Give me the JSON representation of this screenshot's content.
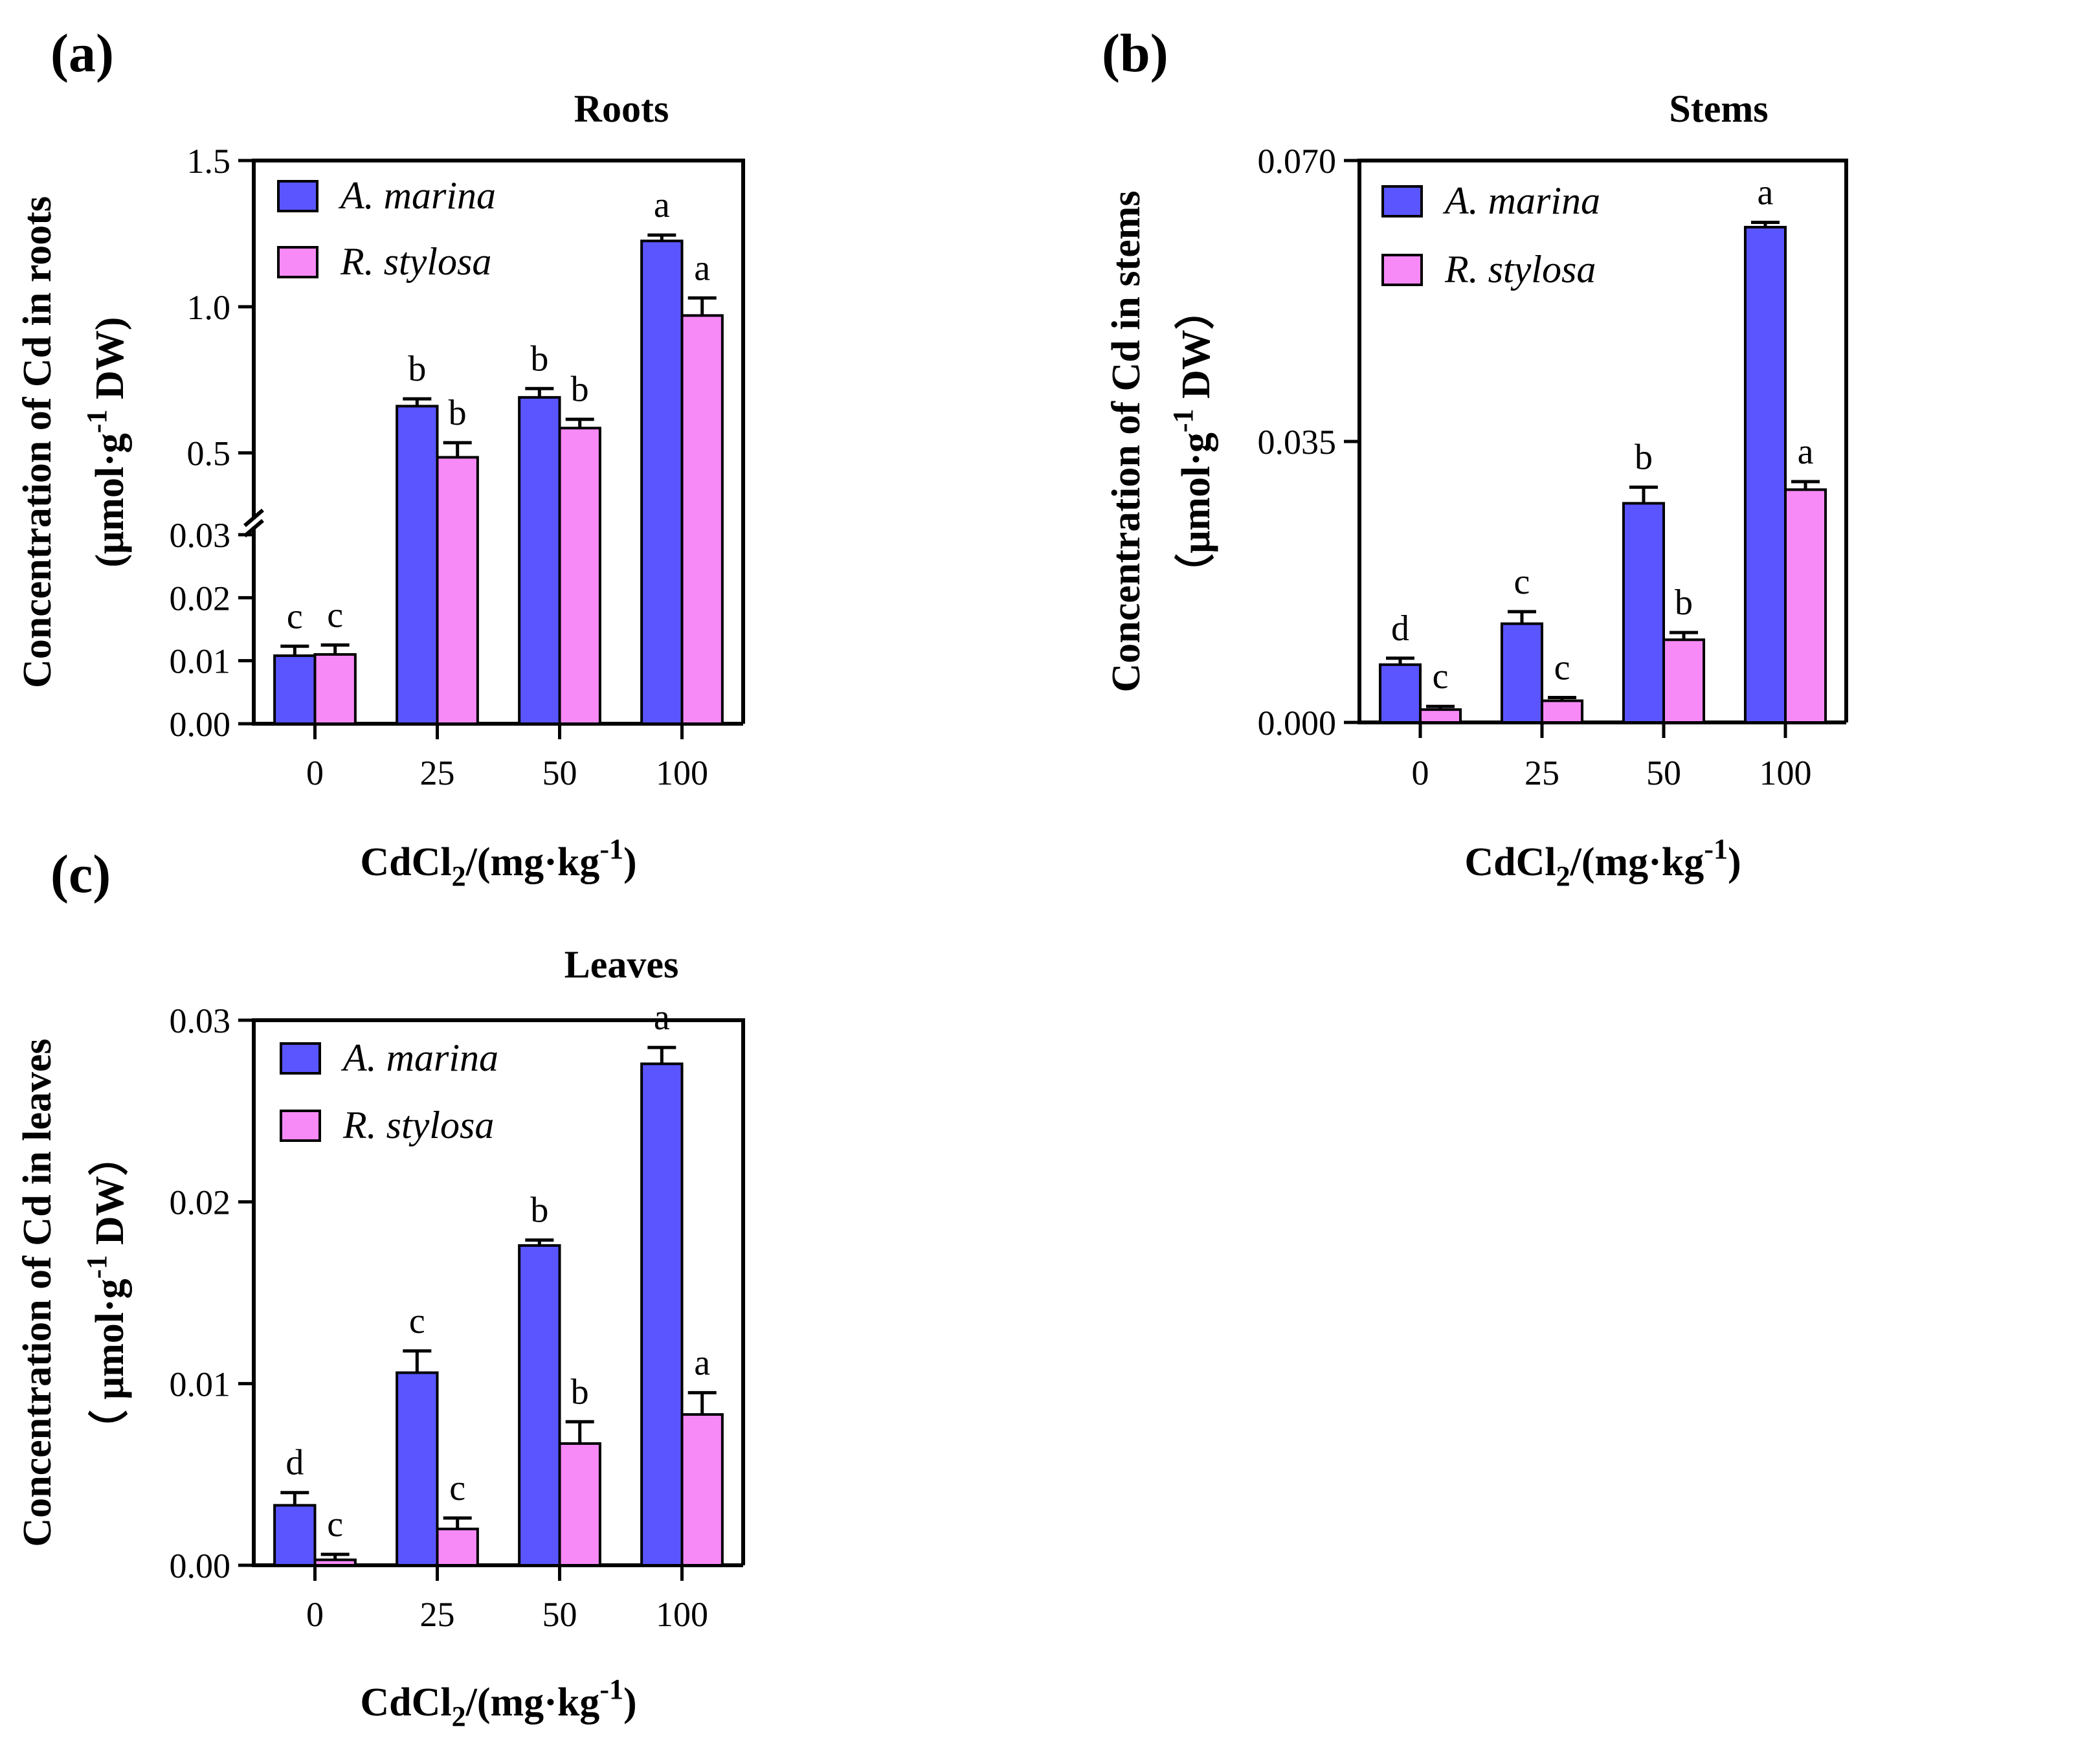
{
  "colors": {
    "a_marina": "#5a55ff",
    "r_stylosa": "#f78af7",
    "axis": "#000000"
  },
  "chart_data": [
    {
      "panel_label": "(a)",
      "type": "bar",
      "title": "Roots",
      "xlabel_main": "CdCl",
      "xlabel_sub": "2",
      "xlabel_tail": "/(mg·kg",
      "xlabel_sup": "-1",
      "xlabel_end": ")",
      "ylabel_line1": "Concentration of Cd in roots",
      "ylabel_line2": "(μmol·g",
      "ylabel_sup": "-1",
      "ylabel_tail": " DW)",
      "categories": [
        "0",
        "25",
        "50",
        "100"
      ],
      "axis_break": true,
      "lower_ylim": [
        0,
        0.03
      ],
      "lower_ticks": [
        "0.00",
        "0.01",
        "0.02",
        "0.03"
      ],
      "upper_ylim": [
        0.3,
        1.5
      ],
      "upper_ticks": [
        "0.5",
        "1.0",
        "1.5"
      ],
      "series": [
        {
          "name": "A. marina",
          "values": [
            0.0108,
            0.66,
            0.69,
            1.225
          ],
          "errors": [
            0.0015,
            0.025,
            0.03,
            0.02
          ],
          "letters": [
            "c",
            "b",
            "b",
            "a"
          ]
        },
        {
          "name": "R. stylosa",
          "values": [
            0.011,
            0.485,
            0.585,
            0.97
          ],
          "errors": [
            0.0015,
            0.05,
            0.03,
            0.06
          ],
          "letters": [
            "c",
            "b",
            "b",
            "a"
          ]
        }
      ]
    },
    {
      "panel_label": "(b)",
      "type": "bar",
      "title": "Stems",
      "xlabel_main": "CdCl",
      "xlabel_sub": "2",
      "xlabel_tail": "/(mg·kg",
      "xlabel_sup": "-1",
      "xlabel_end": ")",
      "ylabel_line1": "Concentration of Cd in stems",
      "ylabel_line2": "（μmol·g",
      "ylabel_sup": "-1",
      "ylabel_tail": " DW）",
      "categories": [
        "0",
        "25",
        "50",
        "100"
      ],
      "ylim": [
        0,
        0.07
      ],
      "ticks": [
        "0.000",
        "0.035",
        "0.070"
      ],
      "series": [
        {
          "name": "A. marina",
          "values": [
            0.0072,
            0.0123,
            0.0273,
            0.0617
          ],
          "errors": [
            0.0008,
            0.0015,
            0.002,
            0.0006
          ],
          "letters": [
            "d",
            "c",
            "b",
            "a"
          ]
        },
        {
          "name": "R. stylosa",
          "values": [
            0.0016,
            0.0027,
            0.0103,
            0.029
          ],
          "errors": [
            0.0004,
            0.0004,
            0.0009,
            0.001
          ],
          "letters": [
            "c",
            "c",
            "b",
            "a"
          ]
        }
      ]
    },
    {
      "panel_label": "(c)",
      "type": "bar",
      "title": "Leaves",
      "xlabel_main": "CdCl",
      "xlabel_sub": "2",
      "xlabel_tail": "/(mg·kg",
      "xlabel_sup": "-1",
      "xlabel_end": ")",
      "ylabel_line1": "Concentration of Cd in leaves",
      "ylabel_line2": "（ μmol·g",
      "ylabel_sup": "-1",
      "ylabel_tail": " DW）",
      "categories": [
        "0",
        "25",
        "50",
        "100"
      ],
      "ylim": [
        0,
        0.03
      ],
      "ticks": [
        "0.00",
        "0.01",
        "0.02",
        "0.03"
      ],
      "series": [
        {
          "name": "A. marina",
          "values": [
            0.0033,
            0.0106,
            0.0176,
            0.0276
          ],
          "errors": [
            0.0007,
            0.0012,
            0.0003,
            0.0009
          ],
          "letters": [
            "d",
            "c",
            "b",
            "a"
          ]
        },
        {
          "name": "R. stylosa",
          "values": [
            0.0003,
            0.002,
            0.0067,
            0.0083
          ],
          "errors": [
            0.0003,
            0.0006,
            0.0012,
            0.0012
          ],
          "letters": [
            "c",
            "c",
            "b",
            "a"
          ]
        }
      ]
    }
  ]
}
